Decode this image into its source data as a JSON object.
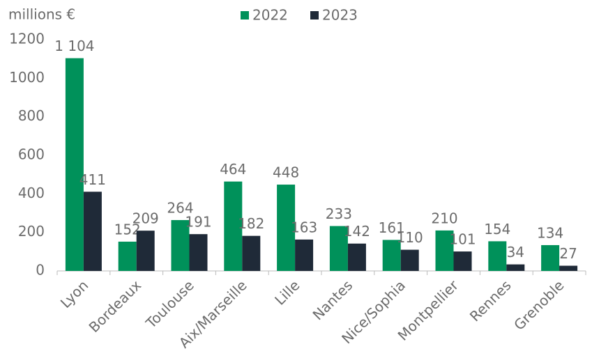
{
  "chart_data": {
    "type": "bar",
    "y_label": "millions €",
    "categories": [
      "Lyon",
      "Bordeaux",
      "Toulouse",
      "Aix/Marseille",
      "Lille",
      "Nantes",
      "Nice/Sophia",
      "Montpellier",
      "Rennes",
      "Grenoble"
    ],
    "series": [
      {
        "name": "2022",
        "color": "#00915a",
        "values": [
          1104,
          152,
          264,
          464,
          448,
          233,
          161,
          210,
          154,
          134
        ],
        "value_labels": [
          "1 104",
          "152",
          "264",
          "464",
          "448",
          "233",
          "161",
          "210",
          "154",
          "134"
        ]
      },
      {
        "name": "2023",
        "color": "#1f2a38",
        "values": [
          411,
          209,
          191,
          182,
          163,
          142,
          110,
          101,
          34,
          27
        ]
      }
    ],
    "ylim": [
      0,
      1200
    ],
    "yticks": [
      0,
      200,
      400,
      600,
      800,
      1000,
      1200
    ],
    "grid": false
  }
}
